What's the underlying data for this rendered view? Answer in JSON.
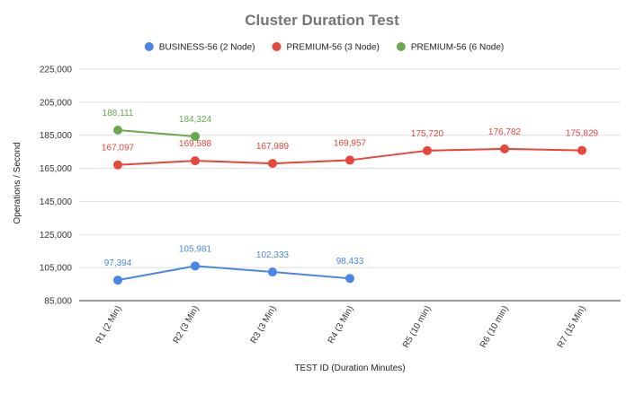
{
  "chart_data": {
    "type": "line",
    "title": "Cluster Duration Test",
    "xlabel": "TEST ID (Duration Minutes)",
    "ylabel": "Operations / Second",
    "categories": [
      "R1 (2 Min)",
      "R2 (3 Min)",
      "R3 (3 Min)",
      "R4 (3 Min)",
      "R5 (10 min)",
      "R6 (10 min)",
      "R7 (15 Min)"
    ],
    "yticks": [
      "85,000",
      "105,000",
      "125,000",
      "145,000",
      "165,000",
      "185,000",
      "205,000",
      "225,000"
    ],
    "ylim": [
      85000,
      225000
    ],
    "grid": true,
    "legend_position": "top",
    "series": [
      {
        "name": "BUSINESS-56 (2 Node)",
        "color": "#4a86e8",
        "values": [
          97394,
          105981,
          102333,
          98433,
          null,
          null,
          null
        ],
        "labels": [
          "97,394",
          "105,981",
          "102,333",
          "98,433",
          null,
          null,
          null
        ]
      },
      {
        "name": "PREMIUM-56 (3 Node)",
        "color": "#e8453c",
        "values": [
          167097,
          169588,
          167989,
          169957,
          175720,
          176782,
          175829
        ],
        "labels": [
          "167,097",
          "169,588",
          "167,989",
          "169,957",
          "175,720",
          "176,782",
          "175,829"
        ]
      },
      {
        "name": "PREMIUM-56 (6 Node)",
        "color": "#6aa84f",
        "values": [
          188111,
          184324,
          null,
          null,
          null,
          null,
          null
        ],
        "labels": [
          "188,111",
          "184,324",
          null,
          null,
          null,
          null,
          null
        ]
      }
    ]
  }
}
